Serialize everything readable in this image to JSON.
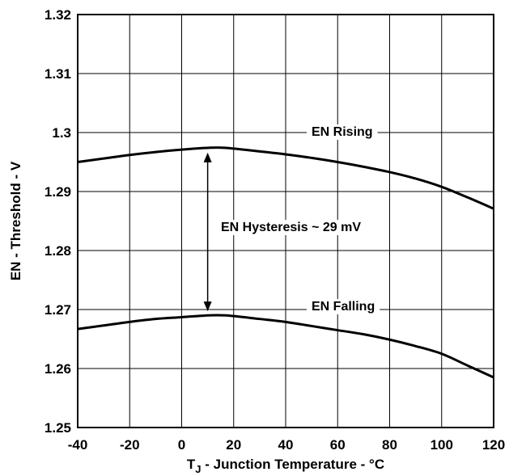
{
  "chart_data": {
    "type": "line",
    "xlabel_prefix": "T",
    "xlabel_sub": "J",
    "xlabel_rest": " - Junction Temperature - °C",
    "ylabel": "EN - Threshold - V",
    "xlim": [
      -40,
      120
    ],
    "ylim": [
      1.25,
      1.32
    ],
    "x_ticks": [
      -40,
      -20,
      0,
      20,
      40,
      60,
      80,
      100,
      120
    ],
    "x_tick_labels": [
      "-40",
      "-20",
      "0",
      "20",
      "40",
      "60",
      "80",
      "100",
      "120"
    ],
    "y_ticks": [
      1.25,
      1.26,
      1.27,
      1.28,
      1.29,
      1.3,
      1.31,
      1.32
    ],
    "y_tick_labels": [
      "1.25",
      "1.26",
      "1.27",
      "1.28",
      "1.29",
      "1.3",
      "1.31",
      "1.32"
    ],
    "grid": true,
    "series": [
      {
        "name": "EN Rising",
        "x": [
          -40,
          -30,
          -20,
          -10,
          0,
          10,
          17,
          30,
          40,
          50,
          60,
          70,
          80,
          90,
          100,
          110,
          120
        ],
        "y": [
          1.295,
          1.2956,
          1.2962,
          1.2967,
          1.2971,
          1.2974,
          1.2974,
          1.2968,
          1.2963,
          1.2957,
          1.295,
          1.2942,
          1.2933,
          1.2922,
          1.2908,
          1.289,
          1.2871
        ]
      },
      {
        "name": "EN Falling",
        "x": [
          -40,
          -30,
          -20,
          -10,
          0,
          10,
          17,
          30,
          40,
          50,
          60,
          70,
          80,
          90,
          100,
          110,
          120
        ],
        "y": [
          1.2667,
          1.2673,
          1.2679,
          1.2684,
          1.2687,
          1.269,
          1.269,
          1.2684,
          1.2679,
          1.2672,
          1.2665,
          1.2658,
          1.2649,
          1.2638,
          1.2625,
          1.2605,
          1.2585
        ]
      }
    ],
    "annotations": {
      "rising_label": "EN Rising",
      "falling_label": "EN Falling",
      "hysteresis_label": "EN Hysteresis ~ 29 mV",
      "hysteresis_x": 10,
      "hysteresis_top": 1.297,
      "hysteresis_bottom": 1.2693
    }
  }
}
